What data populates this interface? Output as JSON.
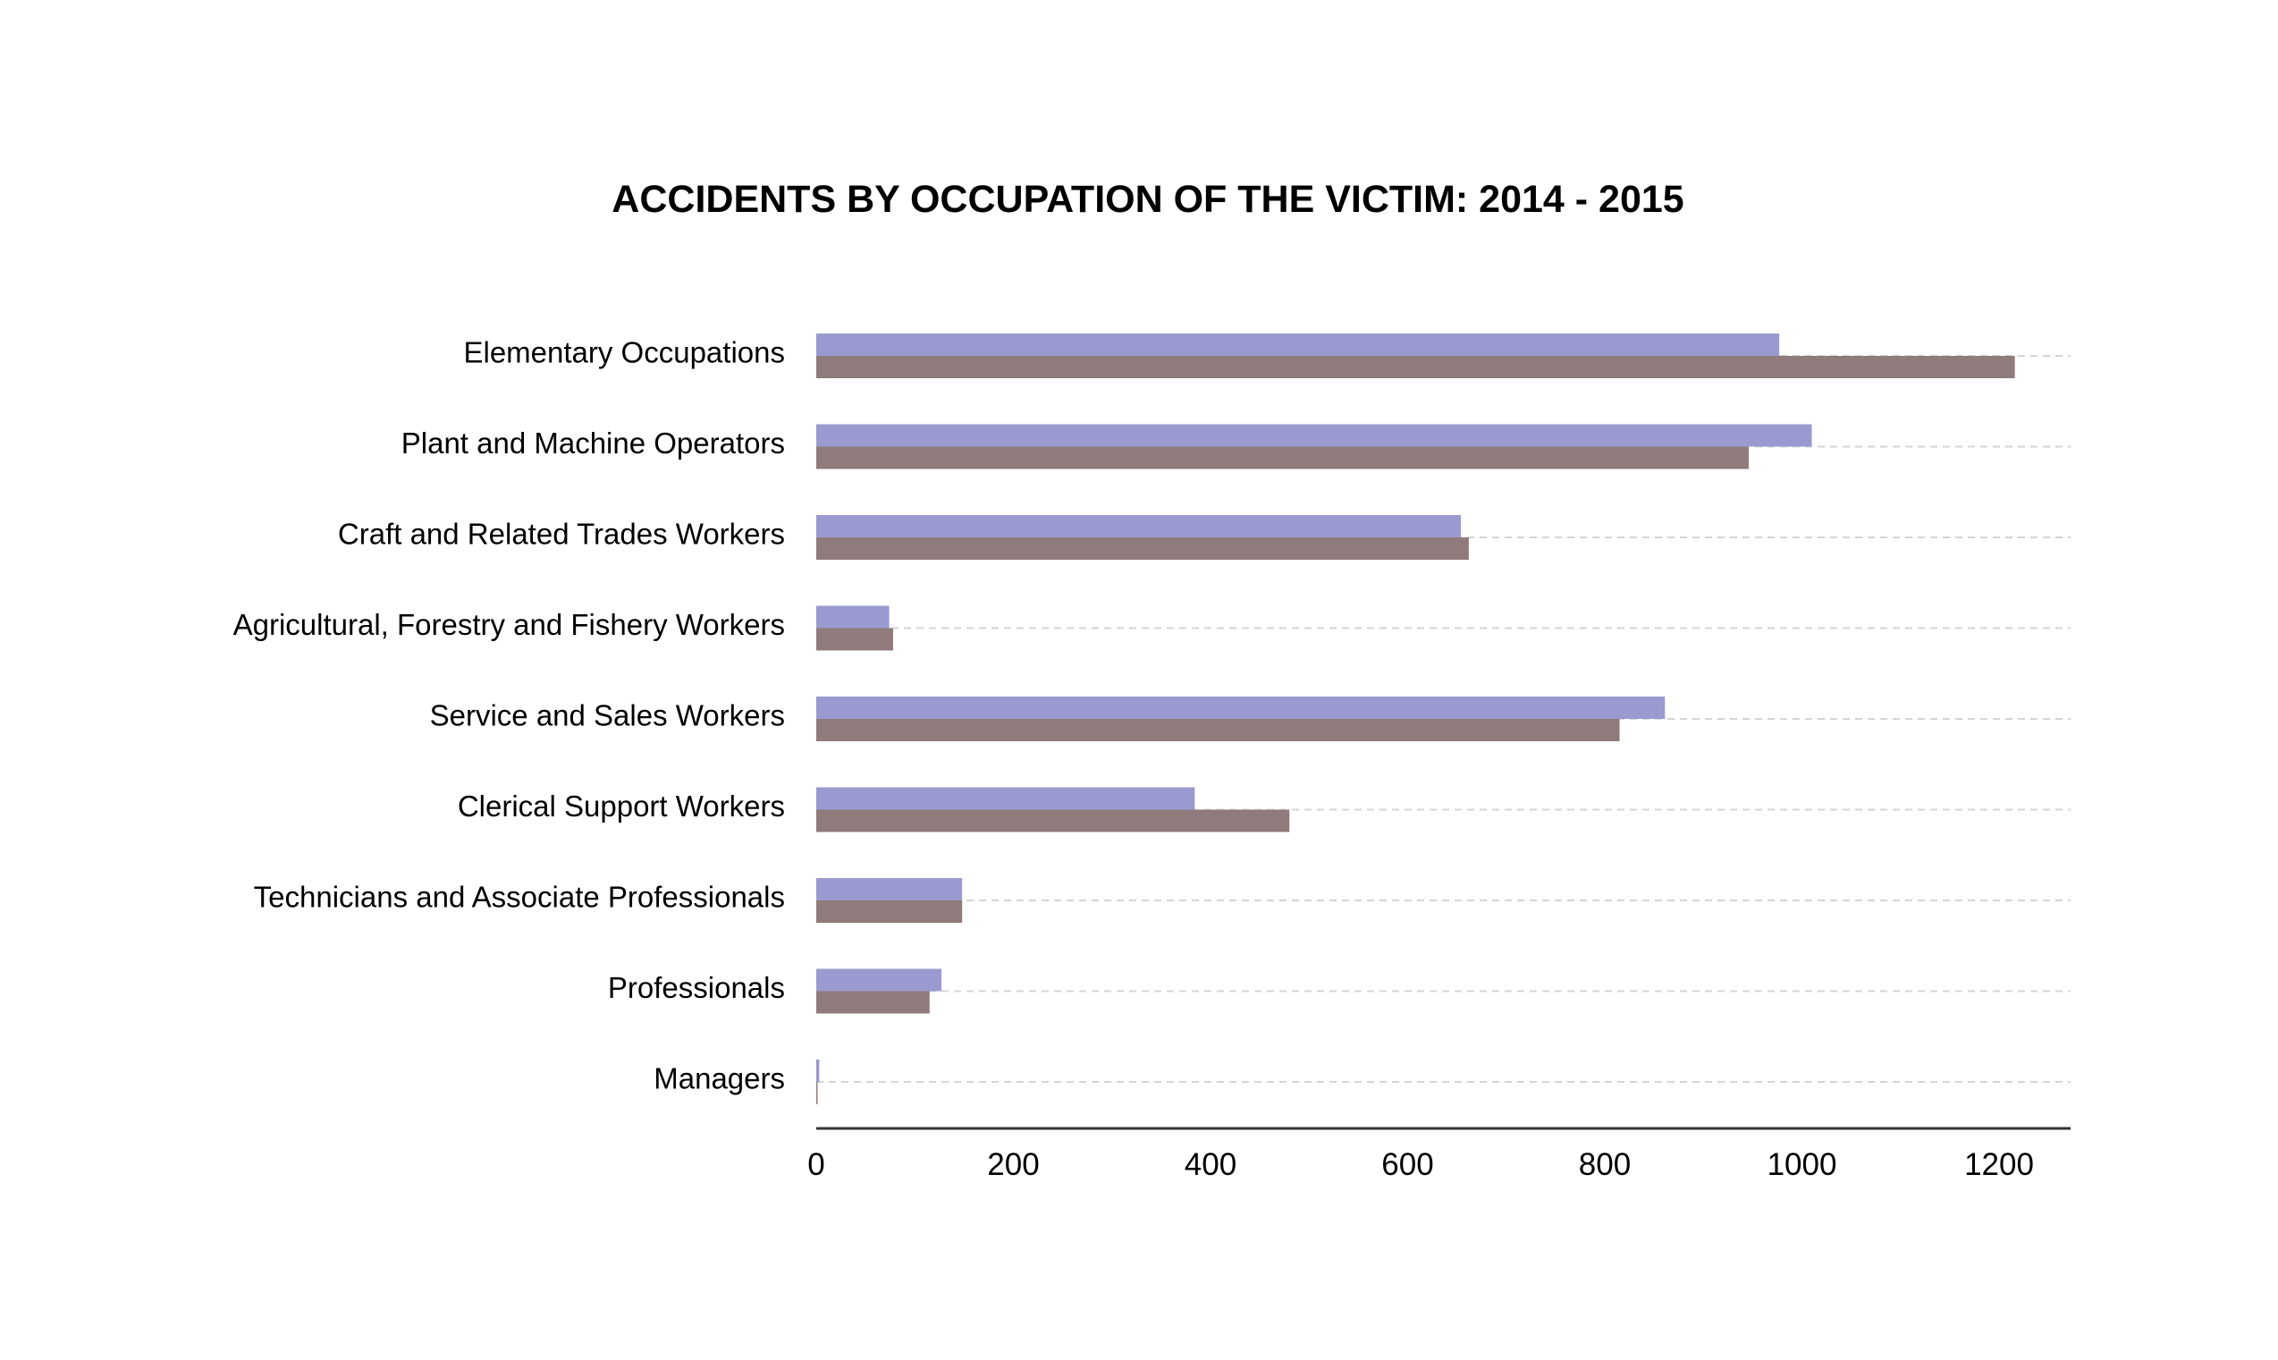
{
  "chart_data": {
    "type": "bar",
    "orientation": "horizontal",
    "title": "ACCIDENTS BY OCCUPATION OF THE VICTIM: 2014 - 2015",
    "xlabel": "",
    "ylabel": "",
    "xlim": [
      0,
      1275
    ],
    "x_ticks": [
      "0",
      "200",
      "400",
      "600",
      "800",
      "1000",
      "1200"
    ],
    "x_tick_values": [
      0,
      200,
      400,
      600,
      800,
      1000,
      1200
    ],
    "grid": "dashed horizontal lines per category",
    "legend": "none",
    "categories": [
      "Elementary Occupations",
      "Plant and Machine Operators",
      "Craft and Related Trades Workers",
      "Agricultural, Forestry and Fishery Workers",
      "Service and Sales Workers",
      "Clerical Support Workers",
      "Technicians and Associate Professionals",
      "Professionals",
      "Managers"
    ],
    "series": [
      {
        "color": "#9a9ad0",
        "values": [
          977,
          1010,
          654,
          74,
          861,
          384,
          148,
          127,
          3
        ]
      },
      {
        "color": "#8f7b7b",
        "values": [
          1216,
          946,
          662,
          78,
          815,
          480,
          148,
          115,
          1
        ]
      }
    ]
  }
}
